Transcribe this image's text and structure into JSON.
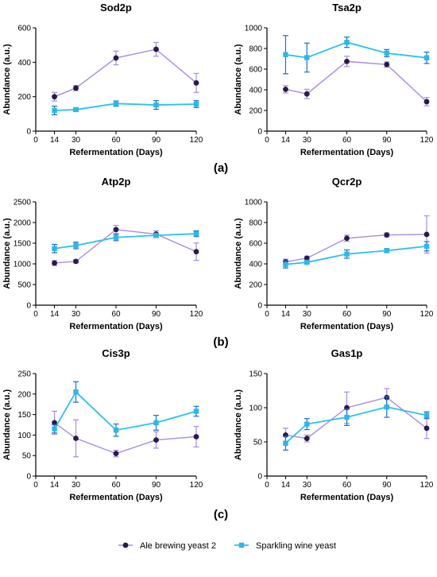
{
  "colors": {
    "ale_line": "#a98be0",
    "ale_marker": "#2a1a4a",
    "wine_line": "#29c2f0",
    "wine_marker": "#29b8ea",
    "wine_error": "#1f6fc6",
    "axis": "#000000"
  },
  "panel_labels": [
    "(a)",
    "(b)",
    "(c)"
  ],
  "legend": {
    "items": [
      {
        "label": "Ale brewing yeast 2",
        "series": "ale"
      },
      {
        "label": "Sparkling wine yeast",
        "series": "wine"
      }
    ]
  },
  "chart_data": [
    {
      "type": "line",
      "title": "Sod2p",
      "xlabel": "Refermentation (Days)",
      "ylabel": "Abundance (a.u.)",
      "xlim": [
        0,
        120
      ],
      "xticks": [
        0,
        14,
        30,
        60,
        90,
        120
      ],
      "ylim": [
        0,
        600
      ],
      "yticks": [
        0,
        200,
        400,
        600
      ],
      "series": [
        {
          "name": "Ale brewing yeast 2",
          "key": "ale",
          "x": [
            14,
            30,
            60,
            90,
            120
          ],
          "y": [
            200,
            250,
            425,
            475,
            280
          ],
          "err": [
            25,
            15,
            40,
            40,
            55
          ]
        },
        {
          "name": "Sparkling wine yeast",
          "key": "wine",
          "x": [
            14,
            30,
            60,
            90,
            120
          ],
          "y": [
            120,
            125,
            160,
            152,
            157
          ],
          "err": [
            25,
            10,
            15,
            25,
            20
          ]
        }
      ]
    },
    {
      "type": "line",
      "title": "Tsa2p",
      "xlabel": "Refermentation (Days)",
      "ylabel": "Abundance (a.u.)",
      "xlim": [
        0,
        120
      ],
      "xticks": [
        0,
        14,
        30,
        60,
        90,
        120
      ],
      "ylim": [
        0,
        1000
      ],
      "yticks": [
        0,
        200,
        400,
        600,
        800,
        1000
      ],
      "series": [
        {
          "name": "Ale brewing yeast 2",
          "key": "ale",
          "x": [
            14,
            30,
            60,
            90,
            120
          ],
          "y": [
            405,
            360,
            675,
            645,
            285
          ],
          "err": [
            35,
            45,
            50,
            25,
            40
          ]
        },
        {
          "name": "Sparkling wine yeast",
          "key": "wine",
          "x": [
            14,
            30,
            60,
            90,
            120
          ],
          "y": [
            740,
            712,
            860,
            755,
            710
          ],
          "err": [
            185,
            140,
            50,
            35,
            55
          ]
        }
      ]
    },
    {
      "type": "line",
      "title": "Atp2p",
      "xlabel": "Refermentation (Days)",
      "ylabel": "Abundance (a.u.)",
      "xlim": [
        0,
        120
      ],
      "xticks": [
        0,
        14,
        30,
        60,
        90,
        120
      ],
      "ylim": [
        0,
        2500
      ],
      "yticks": [
        0,
        500,
        1000,
        1500,
        2000,
        2500
      ],
      "series": [
        {
          "name": "Ale brewing yeast 2",
          "key": "ale",
          "x": [
            14,
            30,
            60,
            90,
            120
          ],
          "y": [
            1020,
            1060,
            1830,
            1720,
            1295
          ],
          "err": [
            60,
            40,
            100,
            80,
            210
          ]
        },
        {
          "name": "Sparkling wine yeast",
          "key": "wine",
          "x": [
            14,
            30,
            60,
            90,
            120
          ],
          "y": [
            1370,
            1445,
            1640,
            1690,
            1730
          ],
          "err": [
            100,
            80,
            80,
            50,
            70
          ]
        }
      ]
    },
    {
      "type": "line",
      "title": "Qcr2p",
      "xlabel": "Refermentation (Days)",
      "ylabel": "Abundance (a.u.)",
      "xlim": [
        0,
        120
      ],
      "xticks": [
        0,
        14,
        30,
        60,
        90,
        120
      ],
      "ylim": [
        0,
        1000
      ],
      "yticks": [
        0,
        200,
        400,
        600,
        800,
        1000
      ],
      "series": [
        {
          "name": "Ale brewing yeast 2",
          "key": "ale",
          "x": [
            14,
            30,
            60,
            90,
            120
          ],
          "y": [
            420,
            455,
            648,
            680,
            685
          ],
          "err": [
            25,
            20,
            30,
            20,
            180
          ]
        },
        {
          "name": "Sparkling wine yeast",
          "key": "wine",
          "x": [
            14,
            30,
            60,
            90,
            120
          ],
          "y": [
            395,
            415,
            495,
            528,
            570
          ],
          "err": [
            35,
            15,
            40,
            20,
            45
          ]
        }
      ]
    },
    {
      "type": "line",
      "title": "Cis3p",
      "xlabel": "Refermentation (Days)",
      "ylabel": "Abundance (a.u.)",
      "xlim": [
        0,
        120
      ],
      "xticks": [
        0,
        14,
        30,
        60,
        90,
        120
      ],
      "ylim": [
        0,
        250
      ],
      "yticks": [
        0,
        50,
        100,
        150,
        200,
        250
      ],
      "series": [
        {
          "name": "Ale brewing yeast 2",
          "key": "ale",
          "x": [
            14,
            30,
            60,
            90,
            120
          ],
          "y": [
            130,
            92,
            55,
            88,
            96
          ],
          "err": [
            28,
            45,
            8,
            20,
            25
          ]
        },
        {
          "name": "Sparkling wine yeast",
          "key": "wine",
          "x": [
            14,
            30,
            60,
            90,
            120
          ],
          "y": [
            115,
            205,
            112,
            130,
            158
          ],
          "err": [
            10,
            25,
            15,
            18,
            12
          ]
        }
      ]
    },
    {
      "type": "line",
      "title": "Gas1p",
      "xlabel": "Refermentation (Days)",
      "ylabel": "Abundance (a.u.)",
      "xlim": [
        0,
        120
      ],
      "xticks": [
        0,
        14,
        30,
        60,
        90,
        120
      ],
      "ylim": [
        0,
        150
      ],
      "yticks": [
        0,
        50,
        100,
        150
      ],
      "series": [
        {
          "name": "Ale brewing yeast 2",
          "key": "ale",
          "x": [
            14,
            30,
            60,
            90,
            120
          ],
          "y": [
            60,
            55,
            100,
            115,
            70
          ],
          "err": [
            10,
            5,
            23,
            13,
            15
          ]
        },
        {
          "name": "Sparkling wine yeast",
          "key": "wine",
          "x": [
            14,
            30,
            60,
            90,
            120
          ],
          "y": [
            48,
            76,
            86,
            101,
            89
          ],
          "err": [
            10,
            8,
            12,
            15,
            5
          ]
        }
      ]
    }
  ]
}
